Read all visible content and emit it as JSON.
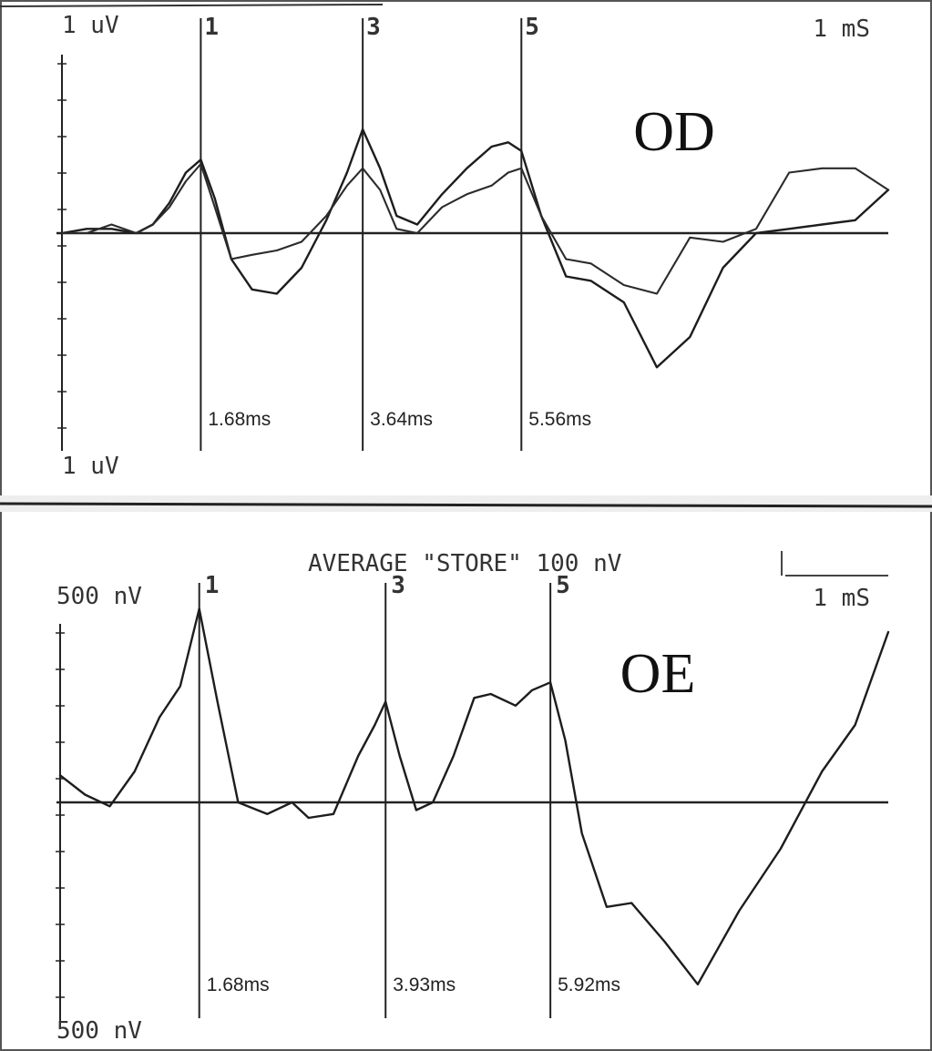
{
  "chart_data": [
    {
      "type": "line",
      "ear_label": "OD",
      "top_scale_label": "1 uV",
      "bottom_scale_label": "1 uV",
      "time_scale_label": "1 mS",
      "peaks": [
        {
          "wave": "1",
          "latency_ms": 1.68,
          "latency_label": "1.68ms"
        },
        {
          "wave": "3",
          "latency_ms": 3.64,
          "latency_label": "3.64ms"
        },
        {
          "wave": "5",
          "latency_ms": 5.56,
          "latency_label": "5.56ms"
        }
      ],
      "x_range_ms": [
        0,
        10
      ],
      "series": [
        {
          "x": [
            0,
            0.3,
            0.6,
            0.9,
            1.1,
            1.3,
            1.5,
            1.68,
            1.85,
            2.05,
            2.3,
            2.6,
            2.9,
            3.2,
            3.45,
            3.64,
            3.85,
            4.05,
            4.3,
            4.6,
            4.9,
            5.2,
            5.4,
            5.56,
            5.8,
            6.1,
            6.4,
            6.8,
            7.2,
            7.6,
            8.0,
            8.4,
            8.8,
            9.2,
            9.6,
            10
          ],
          "y": [
            0,
            0.05,
            0.05,
            0,
            0.1,
            0.35,
            0.7,
            0.85,
            0.4,
            -0.3,
            -0.65,
            -0.7,
            -0.4,
            0.15,
            0.7,
            1.2,
            0.75,
            0.2,
            0.1,
            0.45,
            0.75,
            1.0,
            1.05,
            0.95,
            0.2,
            -0.5,
            -0.55,
            -0.8,
            -1.55,
            -1.2,
            -0.4,
            0,
            0.05,
            0.1,
            0.15,
            0.5
          ]
        },
        {
          "x": [
            0,
            0.3,
            0.6,
            0.9,
            1.1,
            1.3,
            1.5,
            1.68,
            1.85,
            2.05,
            2.3,
            2.6,
            2.9,
            3.2,
            3.45,
            3.64,
            3.85,
            4.05,
            4.3,
            4.6,
            4.9,
            5.2,
            5.4,
            5.56,
            5.8,
            6.1,
            6.4,
            6.8,
            7.2,
            7.6,
            8.0,
            8.4,
            8.8,
            9.2,
            9.6,
            10
          ],
          "y": [
            0,
            0,
            0.1,
            0,
            0.1,
            0.3,
            0.6,
            0.8,
            0.3,
            -0.3,
            -0.25,
            -0.2,
            -0.1,
            0.2,
            0.55,
            0.75,
            0.5,
            0.05,
            0,
            0.3,
            0.45,
            0.55,
            0.7,
            0.75,
            0.2,
            -0.3,
            -0.35,
            -0.6,
            -0.7,
            -0.05,
            -0.1,
            0.05,
            0.7,
            0.75,
            0.75,
            0.5
          ]
        }
      ]
    },
    {
      "type": "line",
      "ear_label": "OE",
      "header_label": "AVERAGE \"STORE\" 100 nV",
      "top_scale_label": "500 nV",
      "bottom_scale_label": "500 nV",
      "time_scale_label": "1 mS",
      "peaks": [
        {
          "wave": "1",
          "latency_ms": 1.68,
          "latency_label": "1.68ms"
        },
        {
          "wave": "3",
          "latency_ms": 3.93,
          "latency_label": "3.93ms"
        },
        {
          "wave": "5",
          "latency_ms": 5.92,
          "latency_label": "5.92ms"
        }
      ],
      "x_range_ms": [
        0,
        10
      ],
      "series": [
        {
          "x": [
            0,
            0.3,
            0.6,
            0.9,
            1.2,
            1.45,
            1.68,
            1.9,
            2.15,
            2.5,
            2.8,
            3.0,
            3.3,
            3.6,
            3.8,
            3.93,
            4.1,
            4.3,
            4.5,
            4.75,
            5.0,
            5.2,
            5.5,
            5.7,
            5.92,
            6.1,
            6.3,
            6.6,
            6.9,
            7.3,
            7.7,
            8.2,
            8.7,
            9.2,
            9.6,
            10
          ],
          "y": [
            0.35,
            0.1,
            -0.05,
            0.4,
            1.1,
            1.5,
            2.5,
            1.3,
            0,
            -0.15,
            0,
            -0.2,
            -0.15,
            0.6,
            1.0,
            1.3,
            0.6,
            -0.1,
            0,
            0.6,
            1.35,
            1.4,
            1.25,
            1.45,
            1.55,
            0.8,
            -0.4,
            -1.35,
            -1.3,
            -1.8,
            -2.35,
            -1.4,
            -0.6,
            0.4,
            1.0,
            2.2
          ]
        }
      ]
    }
  ]
}
